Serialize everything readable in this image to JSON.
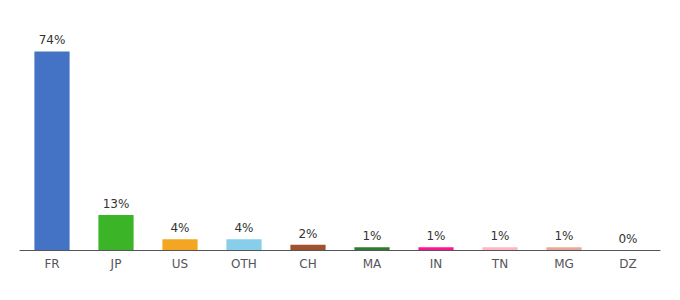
{
  "chart_data": {
    "type": "bar",
    "categories": [
      "FR",
      "JP",
      "US",
      "OTH",
      "CH",
      "MA",
      "IN",
      "TN",
      "MG",
      "DZ"
    ],
    "values": [
      74,
      13,
      4,
      4,
      2,
      1,
      1,
      1,
      1,
      0
    ],
    "value_labels": [
      "74%",
      "13%",
      "4%",
      "4%",
      "2%",
      "1%",
      "1%",
      "1%",
      "1%",
      "0%"
    ],
    "colors": [
      "#4472C4",
      "#3CB428",
      "#F4A623",
      "#87CEEB",
      "#A0522D",
      "#2E7D2E",
      "#FF1493",
      "#FFB6C1",
      "#E8A898",
      "#DDDDDD"
    ],
    "ylim": [
      0,
      82
    ],
    "data_labels": true,
    "tick_labels": "x",
    "grid": false
  }
}
